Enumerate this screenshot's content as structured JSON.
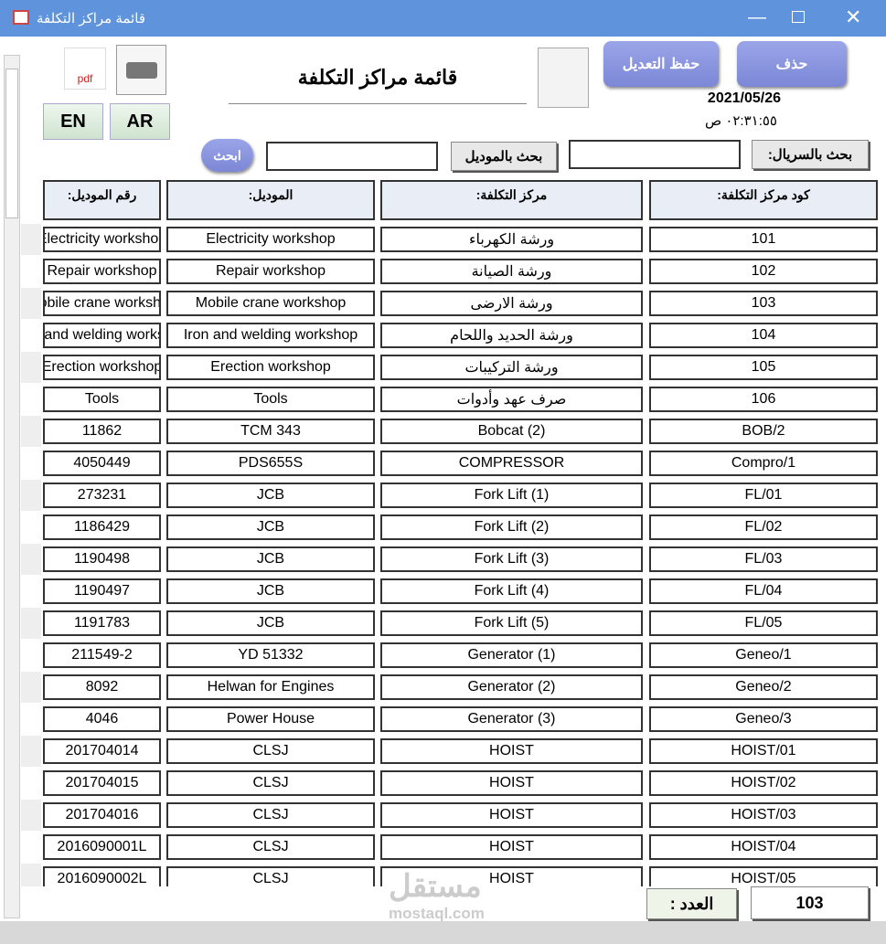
{
  "window": {
    "title": "قائمة مراكز التكلفة"
  },
  "header": {
    "title": "قائمة مراكز التكلفة",
    "date": "2021/05/26",
    "time": "٠٢:٣١:٥٥ ص"
  },
  "buttons": {
    "delete": "حذف",
    "save": "حفظ التعديل",
    "en": "EN",
    "ar": "AR",
    "pdf": "pdf",
    "search": "ابحث"
  },
  "search": {
    "serial_label": "بحث بالسريال:",
    "model_label": "بحث بالموديل"
  },
  "table": {
    "columns": [
      "كود مركز التكلفة:",
      "مركز التكلفة:",
      "الموديل:",
      "رقم الموديل:"
    ],
    "rows": [
      [
        "101",
        "ورشة الكهرباء",
        "Electricity workshop",
        "Electricity workshop"
      ],
      [
        "102",
        "ورشة الصيانة",
        "Repair workshop",
        "Repair workshop"
      ],
      [
        "103",
        "ورشة الارضى",
        "Mobile crane workshop",
        "Mobile crane workshop"
      ],
      [
        "104",
        "ورشة الحديد واللحام",
        "Iron and welding workshop",
        "Iron and welding workshop"
      ],
      [
        "105",
        "ورشة التركيبات",
        "Erection workshop",
        "Erection workshop"
      ],
      [
        "106",
        "صرف عهد وأدوات",
        "Tools",
        "Tools"
      ],
      [
        "BOB/2",
        "Bobcat (2)",
        "TCM 343",
        "11862"
      ],
      [
        "Compro/1",
        "COMPRESSOR",
        "PDS655S",
        "4050449"
      ],
      [
        "FL/01",
        "Fork Lift (1)",
        "JCB",
        "273231"
      ],
      [
        "FL/02",
        "Fork Lift (2)",
        "JCB",
        "1186429"
      ],
      [
        "FL/03",
        "Fork Lift (3)",
        "JCB",
        "1190498"
      ],
      [
        "FL/04",
        "Fork Lift (4)",
        "JCB",
        "1190497"
      ],
      [
        "FL/05",
        "Fork Lift (5)",
        "JCB",
        "1191783"
      ],
      [
        "Geneo/1",
        "Generator (1)",
        "YD 51332",
        "211549-2"
      ],
      [
        "Geneo/2",
        "Generator (2)",
        "Helwan for Engines",
        "8092"
      ],
      [
        "Geneo/3",
        "Generator (3)",
        "Power House",
        "4046"
      ],
      [
        "HOIST/01",
        "HOIST",
        "CLSJ",
        "201704014"
      ],
      [
        "HOIST/02",
        "HOIST",
        "CLSJ",
        "201704015"
      ],
      [
        "HOIST/03",
        "HOIST",
        "CLSJ",
        "201704016"
      ],
      [
        "HOIST/04",
        "HOIST",
        "CLSJ",
        "2016090001L"
      ],
      [
        "HOIST/05",
        "HOIST",
        "CLSJ",
        "2016090002L"
      ]
    ]
  },
  "footer": {
    "count_label": "العدد :",
    "count": "103"
  },
  "watermark": {
    "arabic": "مستقل",
    "latin": "mostaql.com"
  }
}
